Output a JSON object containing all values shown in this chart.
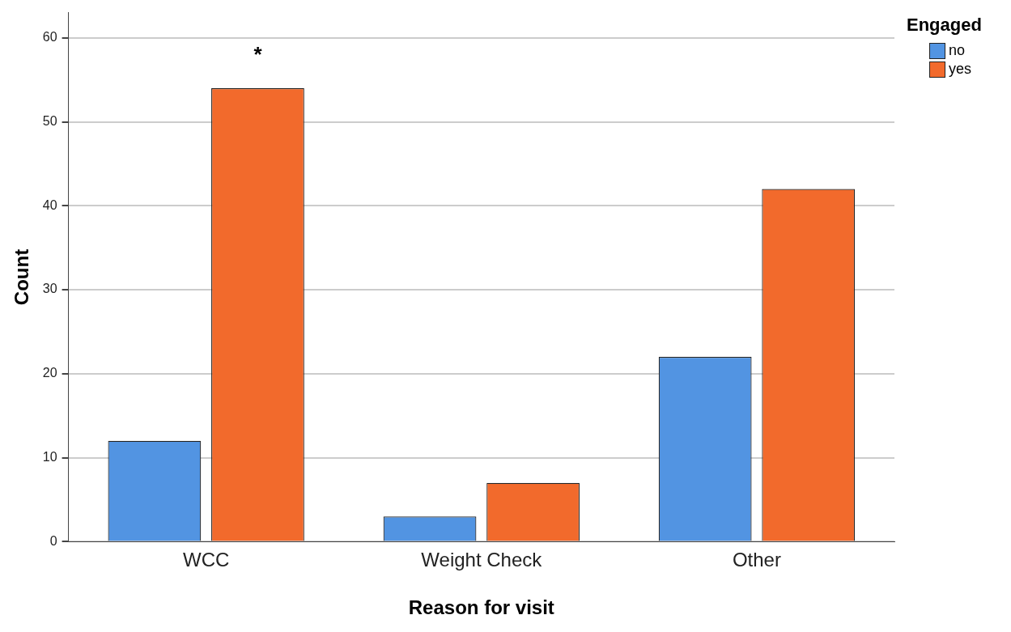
{
  "chart_data": {
    "type": "bar",
    "xlabel": "Reason for visit",
    "ylabel": "Count",
    "legend_title": "Engaged",
    "categories": [
      "WCC",
      "Weight Check",
      "Other"
    ],
    "series": [
      {
        "name": "no",
        "color": "#5294e2",
        "values": [
          12,
          3,
          22
        ]
      },
      {
        "name": "yes",
        "color": "#f26a2c",
        "values": [
          54,
          7,
          42
        ]
      }
    ],
    "ylim": [
      0,
      63
    ],
    "yticks": [
      0,
      10,
      20,
      30,
      40,
      50,
      60
    ],
    "grid": "y",
    "legend": "top right",
    "annotations": [
      "*"
    ]
  }
}
